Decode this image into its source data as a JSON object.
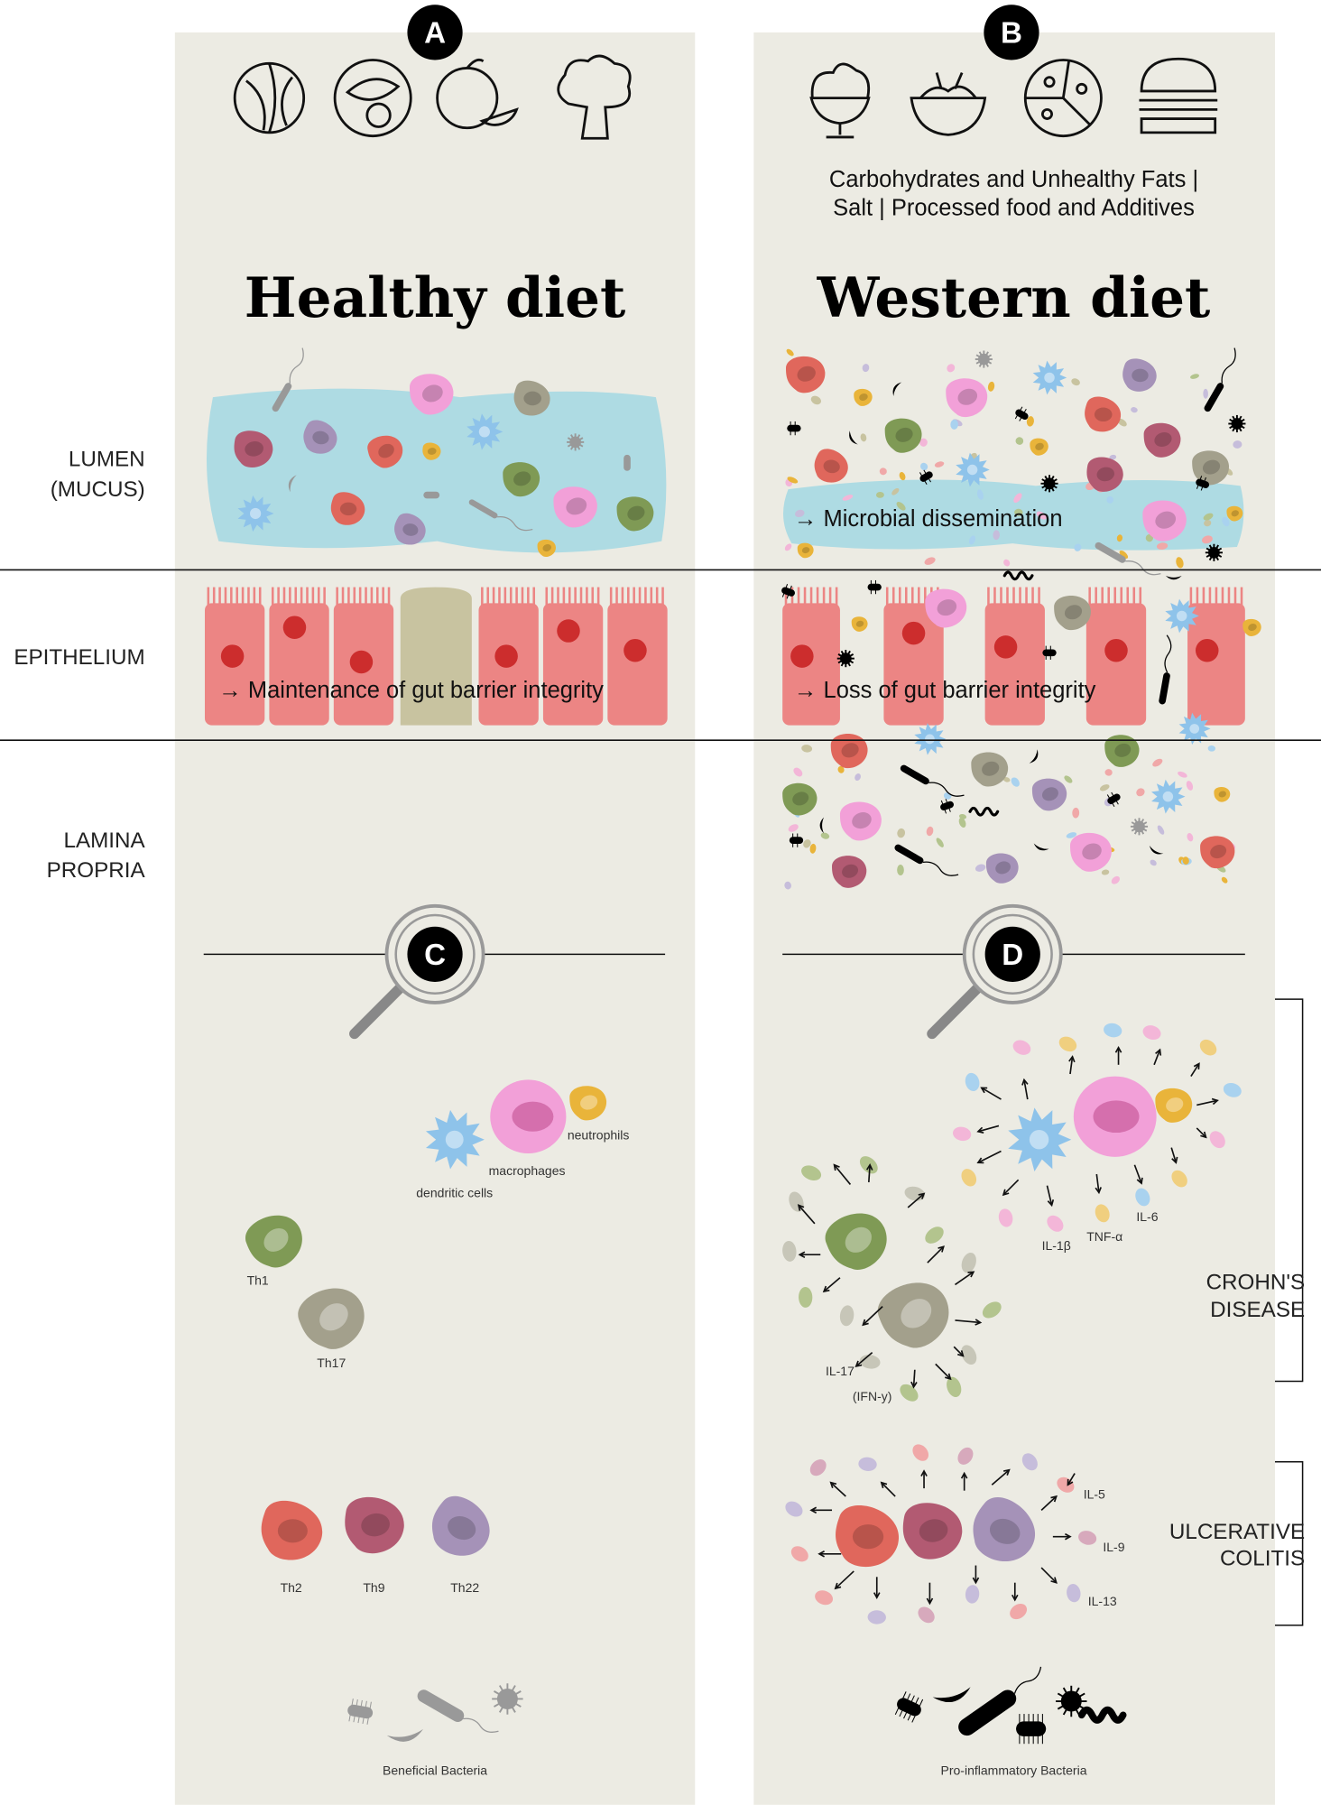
{
  "panels": {
    "a": {
      "badge": "A",
      "title": "Healthy diet"
    },
    "b": {
      "badge": "B",
      "title": "Western diet",
      "subtitle_line1": "Carbohydrates and Unhealthy Fats |",
      "subtitle_line2": "Salt | Processed food and Additives"
    },
    "c": {
      "badge": "C"
    },
    "d": {
      "badge": "D"
    }
  },
  "layers": {
    "lumen_line1": "LUMEN",
    "lumen_line2": "(MUCUS)",
    "epithelium": "EPITHELIUM",
    "lamina_line1": "LAMINA",
    "lamina_line2": "PROPRIA"
  },
  "annotations": {
    "healthy_barrier": "→ Maintenance of gut barrier integrity",
    "western_barrier": "→ Loss of gut barrier integrity",
    "dissemination": "→ Microbial dissemination"
  },
  "healthy_cells": {
    "dendritic": "dendritic cells",
    "macrophages": "macrophages",
    "neutrophils": "neutrophils",
    "th1": "Th1",
    "th17": "Th17",
    "th2": "Th2",
    "th9": "Th9",
    "th22": "Th22",
    "bacteria": "Beneficial Bacteria"
  },
  "western_cells": {
    "il1b": "IL-1β",
    "tnfa": "TNF-α",
    "il6": "IL-6",
    "il17": "IL-17",
    "ifng": "(IFN-y)",
    "il5": "IL-5",
    "il9": "IL-9",
    "il13": "IL-13",
    "bacteria": "Pro-inflammatory Bacteria"
  },
  "diseases": {
    "crohns_line1": "CROHN'S",
    "crohns_line2": "DISEASE",
    "uc_line1": "ULCERATIVE",
    "uc_line2": "COLITIS"
  },
  "food_icons": {
    "healthy": [
      "cabbage-icon",
      "fish-plate-icon",
      "citrus-icon",
      "broccoli-icon"
    ],
    "western": [
      "ice-cream-icon",
      "noodles-icon",
      "pizza-icon",
      "burger-icon"
    ]
  },
  "colors": {
    "panel": "#ecebe3",
    "mucus": "#aedbe3",
    "epithelium": "#ec8584",
    "goblet": "#c8c3a0",
    "dendritic": "#8ec3ea",
    "macrophage": "#f2a0d8",
    "neutrophil": "#e9b43a",
    "th1": "#7f9a55",
    "th17": "#a3a08c",
    "th2": "#e0675c",
    "th9": "#b25a72",
    "th22": "#a592b8",
    "bacteria_good": "#999999",
    "bacteria_bad": "#000000"
  }
}
